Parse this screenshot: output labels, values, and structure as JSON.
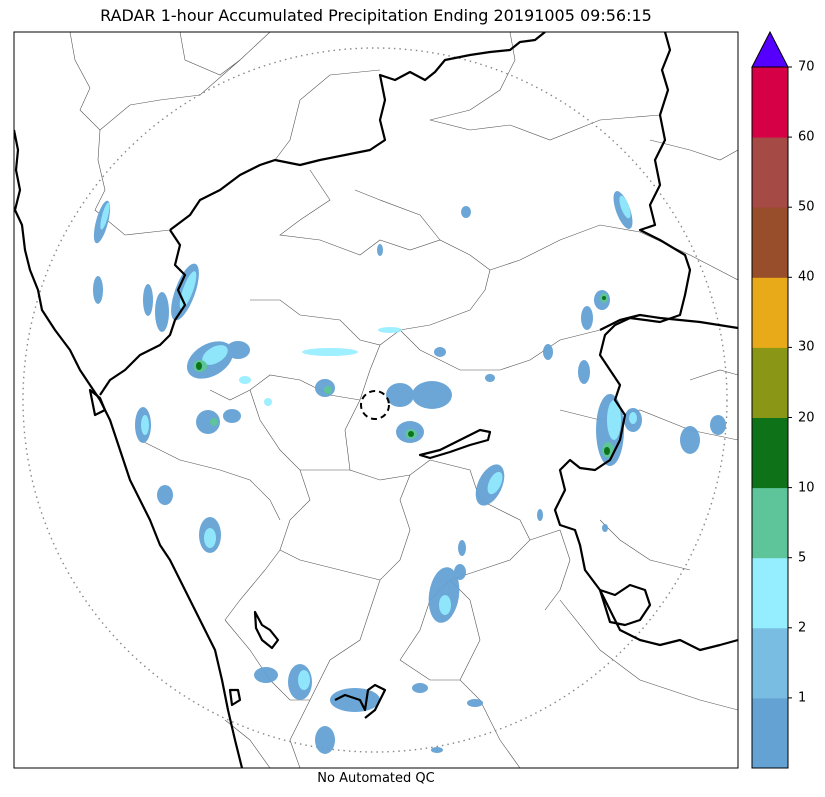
{
  "title": "RADAR 1-hour Accumulated Precipitation Ending 20191005 09:56:15",
  "subtitle": "No Automated QC",
  "colorbar": {
    "ticks": [
      "1",
      "2",
      "5",
      "10",
      "20",
      "30",
      "40",
      "50",
      "60",
      "70"
    ],
    "bins": [
      {
        "color": "#64a2d4"
      },
      {
        "color": "#79bde2"
      },
      {
        "color": "#94eeff"
      },
      {
        "color": "#5ec49a"
      },
      {
        "color": "#0e7219"
      },
      {
        "color": "#8a9616"
      },
      {
        "color": "#e9aa1a"
      },
      {
        "color": "#984e2a"
      },
      {
        "color": "#a54a45"
      },
      {
        "color": "#d50046"
      }
    ],
    "extend_color": "#5500ff"
  },
  "colors": {
    "boundary": "#000000",
    "district": "#555555",
    "range_ring": "#888888"
  }
}
